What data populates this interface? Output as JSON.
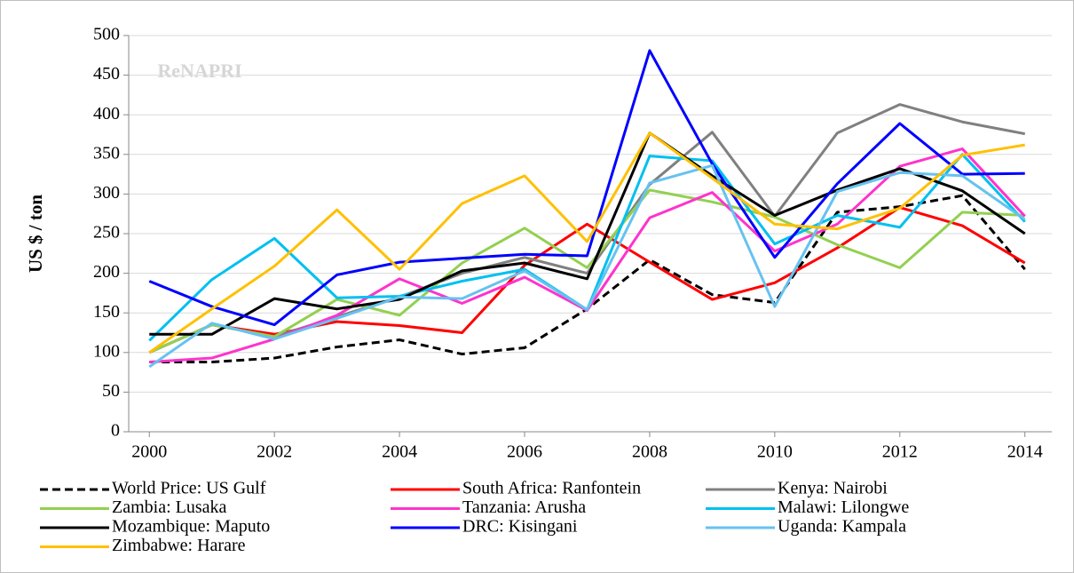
{
  "chart_data": {
    "type": "line",
    "y_label": "US $ / ton",
    "watermark": "ReNAPRI",
    "x": [
      2000,
      2001,
      2002,
      2003,
      2004,
      2005,
      2006,
      2007,
      2008,
      2009,
      2010,
      2011,
      2012,
      2013,
      2014
    ],
    "xlim": [
      1999.67,
      2014.43
    ],
    "xticks": [
      2000,
      2002,
      2004,
      2006,
      2008,
      2010,
      2012,
      2014
    ],
    "ylim": [
      0,
      500
    ],
    "yticks": [
      0,
      50,
      100,
      150,
      200,
      250,
      300,
      350,
      400,
      450,
      500
    ],
    "grid": true,
    "legend": "bottom",
    "series": [
      {
        "name": "World Price: US Gulf",
        "color": "#000000",
        "dashed": true,
        "values": [
          88,
          88,
          93,
          107,
          116,
          98,
          106,
          155,
          217,
          173,
          163,
          277,
          284,
          298,
          205
        ]
      },
      {
        "name": "South Africa: Ranfontein",
        "color": "#ff0000",
        "values": [
          100,
          135,
          123,
          139,
          134,
          125,
          210,
          262,
          214,
          167,
          188,
          232,
          283,
          260,
          213
        ]
      },
      {
        "name": "Kenya: Nairobi",
        "color": "#808080",
        "values": [
          100,
          135,
          120,
          145,
          170,
          200,
          220,
          200,
          312,
          378,
          272,
          377,
          413,
          391,
          376
        ]
      },
      {
        "name": "Zambia: Lusaka",
        "color": "#92d050",
        "values": [
          100,
          135,
          120,
          167,
          147,
          213,
          257,
          207,
          305,
          290,
          271,
          236,
          207,
          277,
          273
        ]
      },
      {
        "name": "Tanzania: Arusha",
        "color": "#ff33cc",
        "values": [
          88,
          93,
          117,
          147,
          193,
          162,
          195,
          153,
          270,
          302,
          228,
          262,
          335,
          357,
          272
        ]
      },
      {
        "name": "Malawi: Lilongwe",
        "color": "#00c0f0",
        "values": [
          115,
          192,
          244,
          169,
          171,
          190,
          205,
          154,
          348,
          342,
          237,
          273,
          258,
          350,
          265
        ]
      },
      {
        "name": "Mozambique: Maputo",
        "color": "#000000",
        "values": [
          123,
          123,
          168,
          155,
          167,
          203,
          213,
          193,
          377,
          323,
          273,
          305,
          332,
          304,
          250
        ]
      },
      {
        "name": "DRC: Kisingani",
        "color": "#0000ff",
        "values": [
          190,
          158,
          135,
          198,
          214,
          219,
          224,
          222,
          481,
          338,
          220,
          313,
          389,
          325,
          326
        ]
      },
      {
        "name": "Uganda: Kampala",
        "color": "#66c2f0",
        "values": [
          82,
          137,
          117,
          143,
          170,
          168,
          203,
          154,
          314,
          336,
          158,
          303,
          327,
          323,
          268
        ]
      },
      {
        "name": "Zimbabwe: Harare",
        "color": "#ffc000",
        "values": [
          100,
          155,
          209,
          280,
          205,
          288,
          323,
          240,
          377,
          320,
          262,
          256,
          282,
          349,
          362
        ]
      }
    ]
  }
}
